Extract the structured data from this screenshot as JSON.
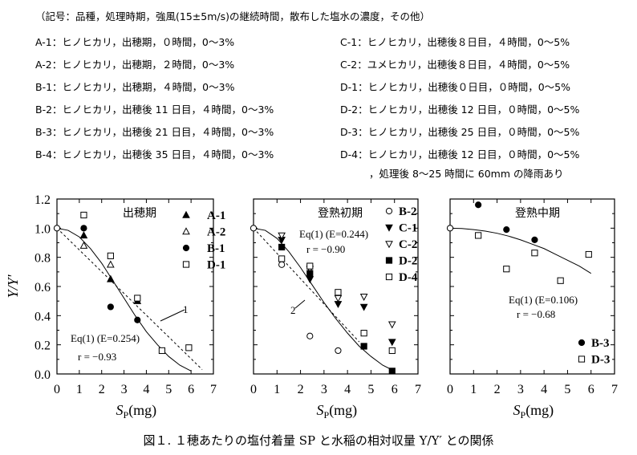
{
  "header": {
    "legend_note": "（記号：品種，処理時期，強風(15±5m/s)の継続時間，散布した塩水の濃度，その他）",
    "left_items": [
      "A-1：ヒノヒカリ，出穂期，０時間，0～3%",
      "A-2：ヒノヒカリ，出穂期，２時間，0～3%",
      "B-1：ヒノヒカリ，出穂期，４時間，0～3%",
      "B-2：ヒノヒカリ，出穂後 11 日目，４時間，0～3%",
      "B-3：ヒノヒカリ，出穂後 21 日目，４時間，0～3%",
      "B-4：ヒノヒカリ，出穂後 35 日目，４時間，0～3%"
    ],
    "right_items": [
      "C-1：ヒノヒカリ，出穂後８日目，４時間，0～5%",
      "C-2：ユメヒカリ，出穂後８日目，４時間，0～5%",
      "D-1：ヒノヒカリ，出穂後０日目，０時間，0～5%",
      "D-2：ヒノヒカリ，出穂後 12 日目，０時間，0～5%",
      "D-3：ヒノヒカリ，出穂後 25 日目，０時間，0～5%",
      "D-4：ヒノヒカリ，出穂後 12 日目，０時間，0～5%"
    ],
    "rain_note": "，処理後 8～25 時間に 60mm の降雨あり"
  },
  "caption": "図１. １穂あたりの塩付着量 SP と水稲の相対収量 Y/Y′ との関係",
  "chart_data": [
    {
      "type": "scatter",
      "title": "出穂期",
      "xlabel": "SP(mg)",
      "ylabel": "Y/Y'",
      "xlim": [
        0,
        7
      ],
      "ylim": [
        0,
        1.2
      ],
      "x_ticks": [
        "0",
        "1",
        "2",
        "3",
        "4",
        "5",
        "6",
        "7"
      ],
      "y_ticks": [
        "0.0",
        "0.2",
        "0.4",
        "0.6",
        "0.8",
        "1.0",
        "1.2"
      ],
      "series": [
        {
          "name": "A-1",
          "marker": "triangle-filled",
          "x": [
            1.2,
            2.4,
            3.6
          ],
          "y": [
            0.95,
            0.65,
            0.5
          ]
        },
        {
          "name": "A-2",
          "marker": "triangle-open",
          "x": [
            1.2,
            2.4
          ],
          "y": [
            0.88,
            0.75
          ]
        },
        {
          "name": "B-1",
          "marker": "circle-filled",
          "x": [
            1.2,
            2.4,
            3.6
          ],
          "y": [
            1.0,
            0.46,
            0.37
          ]
        },
        {
          "name": "D-1",
          "marker": "square-open",
          "x": [
            1.2,
            2.4,
            3.6,
            4.7,
            5.9
          ],
          "y": [
            1.09,
            0.81,
            0.52,
            0.16,
            0.18
          ]
        }
      ],
      "start_point": {
        "x": 0,
        "y": 1.0
      },
      "curves": [
        {
          "label": "Eq(1) (E=0.254)",
          "x": [
            0,
            0.5,
            1,
            1.5,
            2,
            2.5,
            3,
            3.5,
            4,
            4.5,
            5,
            5.5,
            6
          ],
          "y": [
            1.0,
            0.985,
            0.94,
            0.86,
            0.76,
            0.64,
            0.52,
            0.4,
            0.29,
            0.2,
            0.12,
            0.06,
            0.02
          ]
        },
        {
          "label": "1",
          "dashed": true,
          "x": [
            0,
            6.5
          ],
          "y": [
            1.0,
            0.03
          ]
        }
      ],
      "annotations": {
        "eq": "Eq(1) (E=0.254)",
        "r": "r = −0.93",
        "line_label": "1"
      }
    },
    {
      "type": "scatter",
      "title": "登熟初期",
      "xlabel": "SP(mg)",
      "xlim": [
        0,
        7
      ],
      "ylim": [
        0,
        1.2
      ],
      "x_ticks": [
        "0",
        "1",
        "2",
        "3",
        "4",
        "5",
        "6",
        "7"
      ],
      "series": [
        {
          "name": "B-2",
          "marker": "circle-open",
          "x": [
            1.2,
            2.4,
            3.6
          ],
          "y": [
            0.75,
            0.26,
            0.16
          ]
        },
        {
          "name": "C-1",
          "marker": "triangle-down-filled",
          "x": [
            1.2,
            2.4,
            3.6,
            4.7,
            5.9
          ],
          "y": [
            0.92,
            0.65,
            0.48,
            0.46,
            0.22
          ]
        },
        {
          "name": "C-2",
          "marker": "triangle-down-open",
          "x": [
            1.2,
            2.4,
            3.6,
            4.7,
            5.9
          ],
          "y": [
            0.95,
            0.72,
            0.52,
            0.53,
            0.34
          ]
        },
        {
          "name": "D-2",
          "marker": "square-filled",
          "x": [
            1.2,
            2.4,
            4.7,
            5.9
          ],
          "y": [
            0.87,
            0.69,
            0.19,
            0.02
          ]
        },
        {
          "name": "D-4",
          "marker": "square-open",
          "x": [
            1.2,
            2.4,
            3.6,
            4.7,
            5.9
          ],
          "y": [
            0.79,
            0.74,
            0.56,
            0.28,
            0.16
          ]
        }
      ],
      "start_point": {
        "x": 0,
        "y": 1.0
      },
      "curves": [
        {
          "label": "Eq(1) (E=0.244)",
          "x": [
            0,
            0.5,
            1,
            1.5,
            2,
            2.5,
            3,
            3.5,
            4,
            4.5,
            5,
            5.5,
            6
          ],
          "y": [
            1.0,
            0.985,
            0.93,
            0.84,
            0.73,
            0.61,
            0.49,
            0.38,
            0.28,
            0.19,
            0.12,
            0.06,
            0.02
          ]
        },
        {
          "label": "2",
          "dashed": true,
          "x": [
            0,
            4.5
          ],
          "y": [
            1.0,
            0.22
          ]
        }
      ],
      "annotations": {
        "eq": "Eq(1) (E=0.244)",
        "r": "r = −0.90",
        "line_label": "2"
      }
    },
    {
      "type": "scatter",
      "title": "登熟中期",
      "xlabel": "SP(mg)",
      "xlim": [
        0,
        7
      ],
      "ylim": [
        0,
        1.2
      ],
      "x_ticks": [
        "0",
        "1",
        "2",
        "3",
        "4",
        "5",
        "6",
        "7"
      ],
      "series": [
        {
          "name": "B-3",
          "marker": "circle-filled",
          "x": [
            1.2,
            2.4,
            3.6
          ],
          "y": [
            1.16,
            0.99,
            0.92
          ]
        },
        {
          "name": "D-3",
          "marker": "square-open",
          "x": [
            1.2,
            2.4,
            3.6,
            4.7,
            5.9
          ],
          "y": [
            0.95,
            0.72,
            0.83,
            0.64,
            0.82
          ]
        }
      ],
      "start_point": {
        "x": 0,
        "y": 1.0
      },
      "curves": [
        {
          "label": "Eq(1) (E=0.106)",
          "x": [
            0,
            0.5,
            1,
            1.5,
            2,
            2.5,
            3,
            3.5,
            4,
            4.5,
            5,
            5.5,
            6
          ],
          "y": [
            1.0,
            0.998,
            0.99,
            0.98,
            0.965,
            0.945,
            0.92,
            0.89,
            0.86,
            0.82,
            0.78,
            0.74,
            0.69
          ]
        }
      ],
      "annotations": {
        "eq": "Eq(1) (E=0.106)",
        "r": "r = −0.68"
      }
    }
  ]
}
